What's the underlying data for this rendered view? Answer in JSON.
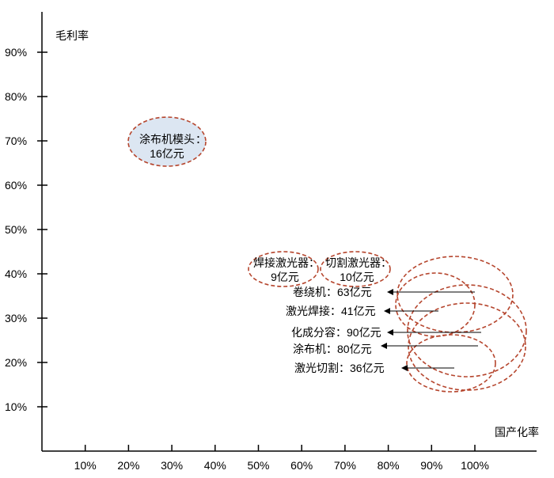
{
  "chart_data": {
    "type": "scatter",
    "title": "",
    "xlabel": "国产化率",
    "ylabel": "毛利率",
    "xlim": [
      0,
      115
    ],
    "ylim": [
      0,
      100
    ],
    "x_ticks": [
      10,
      20,
      30,
      40,
      50,
      60,
      70,
      80,
      90,
      100
    ],
    "x_tick_labels": [
      "10%",
      "20%",
      "30%",
      "40%",
      "50%",
      "60%",
      "70%",
      "80%",
      "90%",
      "100%"
    ],
    "y_ticks": [
      10,
      20,
      30,
      40,
      50,
      60,
      70,
      80,
      90
    ],
    "y_tick_labels": [
      "10%",
      "20%",
      "30%",
      "40%",
      "50%",
      "60%",
      "70%",
      "80%",
      "90%"
    ],
    "grid": false,
    "colors": {
      "dashed_outline": "#b5452d",
      "bubble_fill": "#dce6f2",
      "axis": "#000000",
      "arrow": "#000000"
    },
    "points": [
      {
        "name": "涂布机模头",
        "value_text": "16亿元",
        "x": 30,
        "y": 70,
        "filled": true
      },
      {
        "name": "焊接激光器",
        "value_text": "9亿元",
        "x": 57,
        "y": 42,
        "filled": false
      },
      {
        "name": "切割激光器",
        "value_text": "10亿元",
        "x": 71,
        "y": 42,
        "filled": false
      },
      {
        "name": "卷绕机",
        "value_text": "63亿元",
        "x": 100,
        "y": 37,
        "arrow_label": "卷绕机：63亿元"
      },
      {
        "name": "激光焊接",
        "value_text": "41亿元",
        "x": 92,
        "y": 32,
        "arrow_label": "激光焊接：41亿元"
      },
      {
        "name": "化成分容",
        "value_text": "90亿元",
        "x": 101,
        "y": 27,
        "arrow_label": "化成分容：90亿元"
      },
      {
        "name": "涂布机",
        "value_text": "80亿元",
        "x": 100,
        "y": 23,
        "arrow_label": "涂布机：80亿元"
      },
      {
        "name": "激光切割",
        "value_text": "36亿元",
        "x": 95,
        "y": 19,
        "arrow_label": "激光切割：36亿元"
      }
    ]
  }
}
